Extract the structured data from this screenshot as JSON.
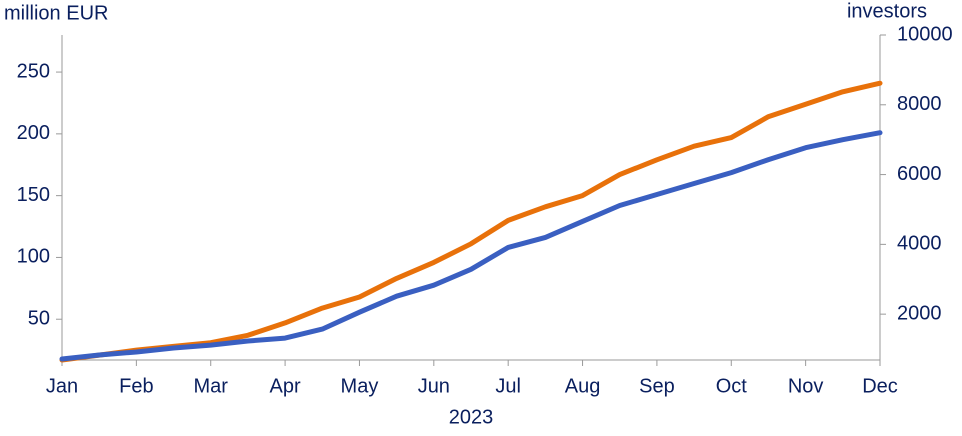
{
  "chart_data": {
    "type": "line",
    "y_label": "million EUR",
    "y2_label": "investors",
    "x_label": "2023",
    "categories": [
      "Jan",
      null,
      "Feb",
      null,
      "Mar",
      null,
      "Apr",
      null,
      "May",
      null,
      "Jun",
      null,
      "Jul",
      null,
      "Aug",
      null,
      "Sep",
      null,
      "Oct",
      null,
      "Nov",
      null,
      "Dec"
    ],
    "series": [
      {
        "color": "#e8710a",
        "values": [
          17,
          21,
          25,
          28,
          31,
          37,
          47,
          59,
          68,
          83,
          96,
          111,
          130,
          141,
          150,
          167,
          179,
          190,
          197,
          214,
          224,
          234,
          241
        ]
      },
      {
        "color": "#3a5fc1",
        "axis": "y2",
        "values": [
          714,
          830,
          914,
          1030,
          1114,
          1230,
          1314,
          1571,
          2057,
          2514,
          2829,
          3286,
          3914,
          4200,
          4657,
          5114,
          5429,
          5743,
          6057,
          6429,
          6771,
          7000,
          7200
        ]
      }
    ],
    "ylim": [
      17,
      280
    ],
    "yticks": [
      50,
      100,
      150,
      200,
      250
    ],
    "y2lim": [
      686,
      10000
    ],
    "y2ticks": [
      2000,
      4000,
      6000,
      8000,
      10000
    ]
  }
}
